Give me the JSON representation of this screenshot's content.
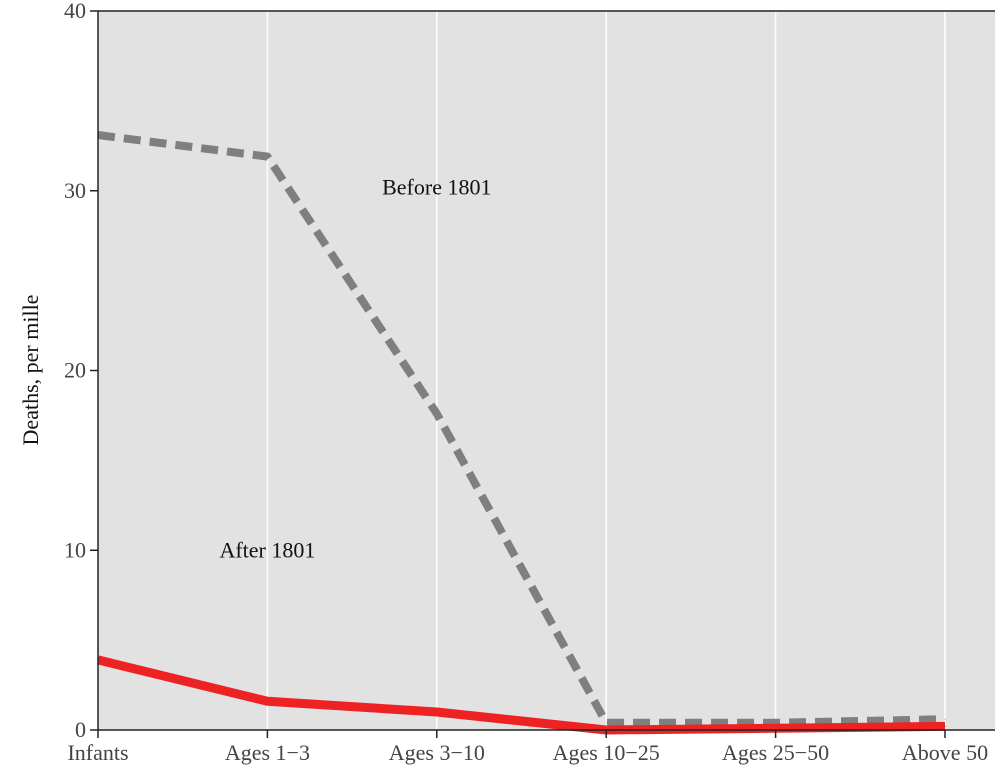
{
  "chart_data": {
    "type": "line",
    "ylabel": "Deaths, per mille",
    "xlabel": "",
    "categories": [
      "Infants",
      "Ages 1−3",
      "Ages 3−10",
      "Ages 10−25",
      "Ages 25−50",
      "Above 50"
    ],
    "ylim": [
      0,
      40
    ],
    "yticks": [
      0,
      10,
      20,
      30,
      40
    ],
    "grid": {
      "vertical": true,
      "horizontal": false
    },
    "series": [
      {
        "key": "before",
        "values": [
          33.1,
          31.9,
          17.6,
          0.4,
          0.4,
          0.6
        ],
        "color": "#7f7f7f",
        "style": "dashed"
      },
      {
        "key": "after",
        "values": [
          3.9,
          1.6,
          1.0,
          0.0,
          0.1,
          0.2
        ],
        "color": "#ee2222",
        "style": "solid"
      }
    ],
    "annotations": [
      {
        "text": "Before 1801",
        "x": 2.0,
        "y": 29.8
      },
      {
        "text": "After 1801",
        "x": 1.0,
        "y": 9.6
      }
    ],
    "colors": {
      "panel_background": "#e2e2e2",
      "gridline": "#ffffff",
      "axis": "#222222"
    }
  }
}
